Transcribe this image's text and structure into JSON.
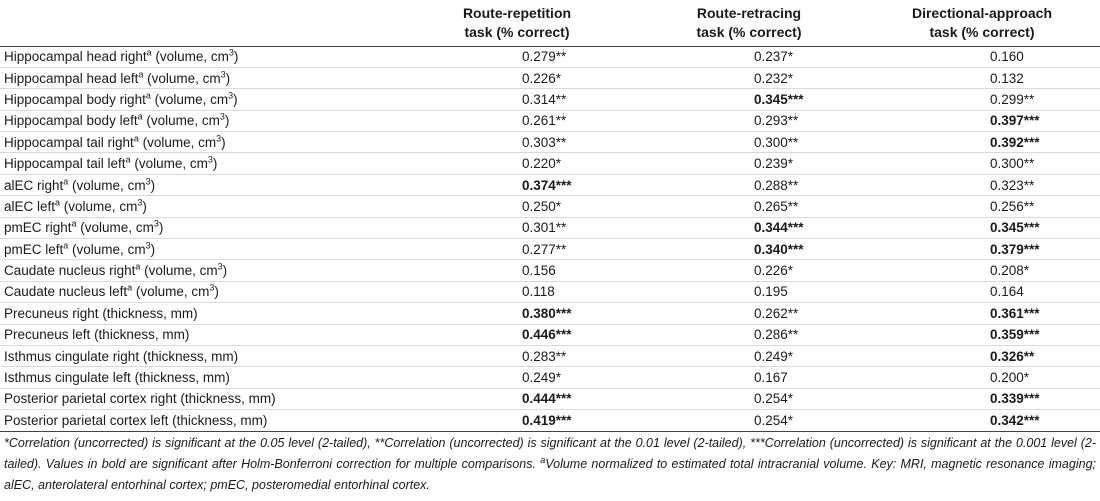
{
  "headers": [
    {
      "line1": "",
      "line2": ""
    },
    {
      "line1": "Route-repetition",
      "line2": "task (% correct)"
    },
    {
      "line1": "Route-retracing",
      "line2": "task (% correct)"
    },
    {
      "line1": "Directional-approach",
      "line2": "task (% correct)"
    }
  ],
  "rows": [
    {
      "label": "Hippocampal head right",
      "sup": "a",
      "unit": " (volume, cm",
      "unit_sup": "3",
      "unit_end": ")",
      "v": [
        {
          "n": "0.279",
          "s": "**",
          "b": false
        },
        {
          "n": "0.237",
          "s": "*",
          "b": false
        },
        {
          "n": "0.160",
          "s": "",
          "b": false
        }
      ]
    },
    {
      "label": "Hippocampal head left",
      "sup": "a",
      "unit": " (volume, cm",
      "unit_sup": "3",
      "unit_end": ")",
      "v": [
        {
          "n": "0.226",
          "s": "*",
          "b": false
        },
        {
          "n": "0.232",
          "s": "*",
          "b": false
        },
        {
          "n": "0.132",
          "s": "",
          "b": false
        }
      ]
    },
    {
      "label": "Hippocampal body right",
      "sup": "a",
      "unit": " (volume, cm",
      "unit_sup": "3",
      "unit_end": ")",
      "v": [
        {
          "n": "0.314",
          "s": "**",
          "b": false
        },
        {
          "n": "0.345",
          "s": "***",
          "b": true
        },
        {
          "n": "0.299",
          "s": "**",
          "b": false
        }
      ]
    },
    {
      "label": "Hippocampal body left",
      "sup": "a",
      "unit": " (volume, cm",
      "unit_sup": "3",
      "unit_end": ")",
      "v": [
        {
          "n": "0.261",
          "s": "**",
          "b": false
        },
        {
          "n": "0.293",
          "s": "**",
          "b": false
        },
        {
          "n": "0.397",
          "s": "***",
          "b": true
        }
      ]
    },
    {
      "label": "Hippocampal tail right",
      "sup": "a",
      "unit": " (volume, cm",
      "unit_sup": "3",
      "unit_end": ")",
      "v": [
        {
          "n": "0.303",
          "s": "**",
          "b": false
        },
        {
          "n": "0.300",
          "s": "**",
          "b": false
        },
        {
          "n": "0.392",
          "s": "***",
          "b": true
        }
      ]
    },
    {
      "label": "Hippocampal tail left",
      "sup": "a",
      "unit": " (volume, cm",
      "unit_sup": "3",
      "unit_end": ")",
      "v": [
        {
          "n": "0.220",
          "s": "*",
          "b": false
        },
        {
          "n": "0.239",
          "s": "*",
          "b": false
        },
        {
          "n": "0.300",
          "s": "**",
          "b": false
        }
      ]
    },
    {
      "label": "alEC right",
      "sup": "a",
      "unit": " (volume, cm",
      "unit_sup": "3",
      "unit_end": ")",
      "v": [
        {
          "n": "0.374",
          "s": "***",
          "b": true
        },
        {
          "n": "0.288",
          "s": "**",
          "b": false
        },
        {
          "n": "0.323",
          "s": "**",
          "b": false
        }
      ]
    },
    {
      "label": "alEC left",
      "sup": "a",
      "unit": " (volume, cm",
      "unit_sup": "3",
      "unit_end": ")",
      "v": [
        {
          "n": "0.250",
          "s": "*",
          "b": false
        },
        {
          "n": "0.265",
          "s": "**",
          "b": false
        },
        {
          "n": "0.256",
          "s": "**",
          "b": false
        }
      ]
    },
    {
      "label": "pmEC right",
      "sup": "a",
      "unit": " (volume, cm",
      "unit_sup": "3",
      "unit_end": ")",
      "v": [
        {
          "n": "0.301",
          "s": "**",
          "b": false
        },
        {
          "n": "0.344",
          "s": "***",
          "b": true
        },
        {
          "n": "0.345",
          "s": "***",
          "b": true
        }
      ]
    },
    {
      "label": "pmEC left",
      "sup": "a",
      "unit": " (volume, cm",
      "unit_sup": "3",
      "unit_end": ")",
      "v": [
        {
          "n": "0.277",
          "s": "**",
          "b": false
        },
        {
          "n": "0.340",
          "s": "***",
          "b": true
        },
        {
          "n": "0.379",
          "s": "***",
          "b": true
        }
      ]
    },
    {
      "label": "Caudate nucleus right",
      "sup": "a",
      "unit": " (volume, cm",
      "unit_sup": "3",
      "unit_end": ")",
      "v": [
        {
          "n": "0.156",
          "s": "",
          "b": false
        },
        {
          "n": "0.226",
          "s": "*",
          "b": false
        },
        {
          "n": "0.208",
          "s": "*",
          "b": false
        }
      ]
    },
    {
      "label": "Caudate nucleus left",
      "sup": "a",
      "unit": " (volume, cm",
      "unit_sup": "3",
      "unit_end": ")",
      "v": [
        {
          "n": "0.118",
          "s": "",
          "b": false
        },
        {
          "n": "0.195",
          "s": "",
          "b": false
        },
        {
          "n": "0.164",
          "s": "",
          "b": false
        }
      ]
    },
    {
      "label": "Precuneus right",
      "sup": "",
      "unit": " (thickness, mm)",
      "unit_sup": "",
      "unit_end": "",
      "v": [
        {
          "n": "0.380",
          "s": "***",
          "b": true
        },
        {
          "n": "0.262",
          "s": "**",
          "b": false
        },
        {
          "n": "0.361",
          "s": "***",
          "b": true
        }
      ]
    },
    {
      "label": "Precuneus left",
      "sup": "",
      "unit": " (thickness, mm)",
      "unit_sup": "",
      "unit_end": "",
      "v": [
        {
          "n": "0.446",
          "s": "***",
          "b": true
        },
        {
          "n": "0.286",
          "s": "**",
          "b": false
        },
        {
          "n": "0.359",
          "s": "***",
          "b": true
        }
      ]
    },
    {
      "label": "Isthmus cingulate right",
      "sup": "",
      "unit": " (thickness, mm)",
      "unit_sup": "",
      "unit_end": "",
      "v": [
        {
          "n": "0.283",
          "s": "**",
          "b": false
        },
        {
          "n": "0.249",
          "s": "*",
          "b": false
        },
        {
          "n": "0.326",
          "s": "**",
          "b": true
        }
      ]
    },
    {
      "label": "Isthmus cingulate left",
      "sup": "",
      "unit": " (thickness, mm)",
      "unit_sup": "",
      "unit_end": "",
      "v": [
        {
          "n": "0.249",
          "s": "*",
          "b": false
        },
        {
          "n": "0.167",
          "s": "",
          "b": false
        },
        {
          "n": "0.200",
          "s": "*",
          "b": false
        }
      ]
    },
    {
      "label": "Posterior parietal cortex right",
      "sup": "",
      "unit": " (thickness, mm)",
      "unit_sup": "",
      "unit_end": "",
      "v": [
        {
          "n": "0.444",
          "s": "***",
          "b": true
        },
        {
          "n": "0.254",
          "s": "*",
          "b": false
        },
        {
          "n": "0.339",
          "s": "***",
          "b": true
        }
      ]
    },
    {
      "label": "Posterior parietal cortex left",
      "sup": "",
      "unit": " (thickness, mm)",
      "unit_sup": "",
      "unit_end": "",
      "v": [
        {
          "n": "0.419",
          "s": "***",
          "b": true
        },
        {
          "n": "0.254",
          "s": "*",
          "b": false
        },
        {
          "n": "0.342",
          "s": "***",
          "b": true
        }
      ]
    }
  ],
  "footnote": {
    "p1": "*Correlation (uncorrected) is significant at the 0.05 level (2-tailed), **Correlation (uncorrected) is significant at the 0.01 level (2-tailed), ***Correlation (uncorrected) is significant at the 0.001 level (2-tailed). Values in bold are significant after Holm-Bonferroni correction for multiple comparisons. ",
    "sup": "a",
    "p2": "Volume normalized to estimated total intracranial volume. Key: MRI, magnetic resonance imaging; alEC, anterolateral entorhinal cortex; pmEC, posteromedial entorhinal cortex."
  }
}
